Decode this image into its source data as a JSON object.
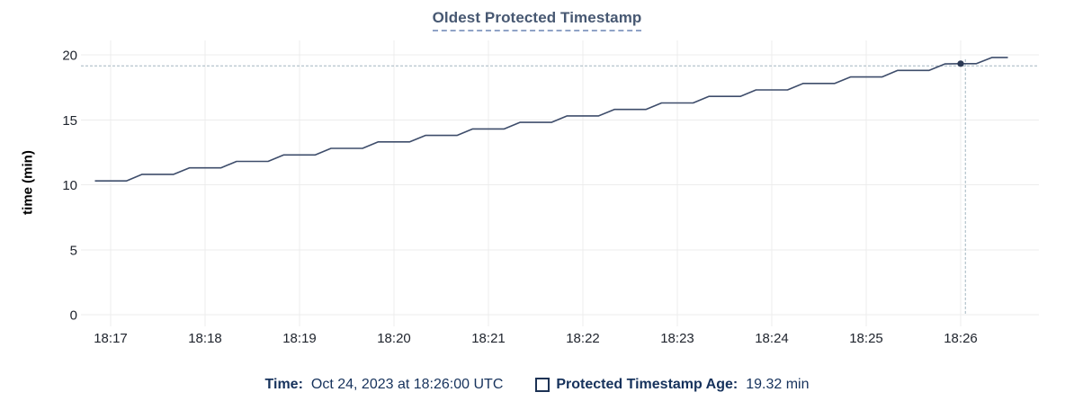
{
  "title": "Oldest Protected Timestamp",
  "y_axis_label": "time (min)",
  "legend": {
    "time_label": "Time:",
    "time_value": "Oct 24, 2023 at 18:26:00 UTC",
    "series_label": "Protected Timestamp Age:",
    "series_value": "19.32 min"
  },
  "colors": {
    "line": "#3e4d6b",
    "dot": "#2c3a55",
    "crosshair": "#a2b5c0",
    "grid": "#ececec",
    "tick_text": "#20252e",
    "title_text": "#475872",
    "title_underline": "#8fa3c6",
    "legend_text": "#16325c"
  },
  "chart_data": {
    "type": "line",
    "title": "Oldest Protected Timestamp",
    "xlabel": "",
    "ylabel": "time (min)",
    "ylim": [
      0,
      20
    ],
    "y_ticks": [
      0,
      5,
      10,
      15,
      20
    ],
    "x_ticks": [
      "18:17",
      "18:18",
      "18:19",
      "18:20",
      "18:21",
      "18:22",
      "18:23",
      "18:24",
      "18:25",
      "18:26"
    ],
    "x_domain": [
      "18:16:40",
      "18:26:49"
    ],
    "grid": true,
    "legend_position": "bottom",
    "series": [
      {
        "name": "Protected Timestamp Age",
        "x": [
          "18:16:50",
          "18:17:00",
          "18:17:10",
          "18:17:20",
          "18:17:30",
          "18:17:40",
          "18:17:50",
          "18:18:00",
          "18:18:10",
          "18:18:20",
          "18:18:30",
          "18:18:40",
          "18:18:50",
          "18:19:00",
          "18:19:10",
          "18:19:20",
          "18:19:30",
          "18:19:40",
          "18:19:50",
          "18:20:00",
          "18:20:10",
          "18:20:20",
          "18:20:30",
          "18:20:40",
          "18:20:50",
          "18:21:00",
          "18:21:10",
          "18:21:20",
          "18:21:30",
          "18:21:40",
          "18:21:50",
          "18:22:00",
          "18:22:10",
          "18:22:20",
          "18:22:30",
          "18:22:40",
          "18:22:50",
          "18:23:00",
          "18:23:10",
          "18:23:20",
          "18:23:30",
          "18:23:40",
          "18:23:50",
          "18:24:00",
          "18:24:10",
          "18:24:20",
          "18:24:30",
          "18:24:40",
          "18:24:50",
          "18:25:00",
          "18:25:10",
          "18:25:20",
          "18:25:30",
          "18:25:40",
          "18:25:50",
          "18:26:00",
          "18:26:10",
          "18:26:20",
          "18:26:30"
        ],
        "y": [
          10.3,
          10.3,
          10.3,
          10.8,
          10.8,
          10.8,
          11.3,
          11.3,
          11.3,
          11.8,
          11.8,
          11.8,
          12.3,
          12.3,
          12.3,
          12.8,
          12.8,
          12.8,
          13.3,
          13.3,
          13.3,
          13.8,
          13.8,
          13.8,
          14.3,
          14.3,
          14.3,
          14.8,
          14.8,
          14.8,
          15.3,
          15.3,
          15.3,
          15.8,
          15.8,
          15.8,
          16.3,
          16.3,
          16.3,
          16.8,
          16.8,
          16.8,
          17.3,
          17.3,
          17.3,
          17.8,
          17.8,
          17.8,
          18.3,
          18.3,
          18.3,
          18.8,
          18.8,
          18.8,
          19.3,
          19.32,
          19.32,
          19.8,
          19.8
        ]
      }
    ],
    "hover": {
      "point_time": "18:26:00",
      "point_value": 19.32,
      "crosshair_time": "18:26:03",
      "crosshair_value": 19.15
    }
  }
}
